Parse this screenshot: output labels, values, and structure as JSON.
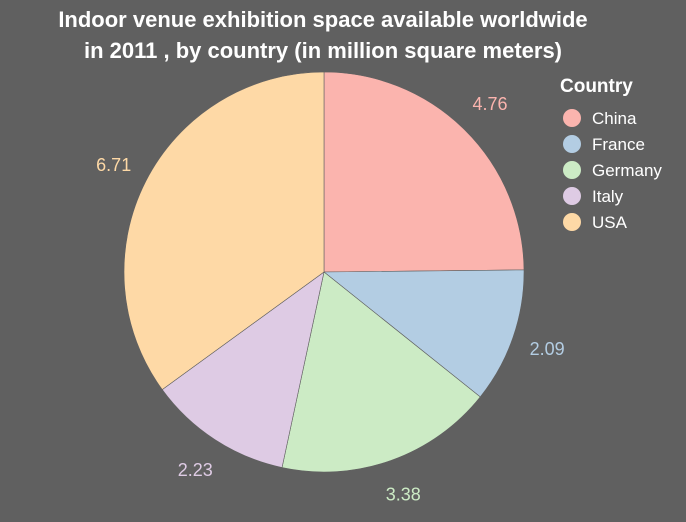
{
  "chart_data": {
    "type": "pie",
    "title_lines": [
      "Indoor venue exhibition space available worldwide",
      "in 2011 , by country (in million square meters)"
    ],
    "legend_title": "Country",
    "legend_position": "right",
    "categories": [
      "China",
      "France",
      "Germany",
      "Italy",
      "USA"
    ],
    "values": [
      4.76,
      2.09,
      3.38,
      2.23,
      6.71
    ],
    "value_labels": [
      "4.76",
      "2.09",
      "3.38",
      "2.23",
      "6.71"
    ],
    "colors": [
      "#fbb4ae",
      "#b3cde3",
      "#ccebc5",
      "#decbe4",
      "#fed9a6"
    ],
    "start_angle": "12 o'clock",
    "direction": "clockwise"
  }
}
